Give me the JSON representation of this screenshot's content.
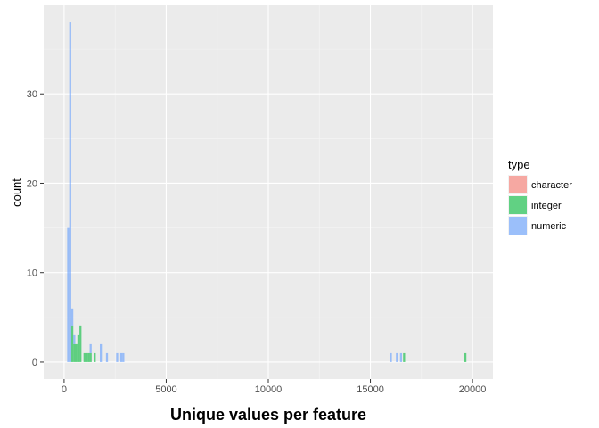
{
  "chart_data": {
    "type": "bar",
    "subtype": "histogram",
    "title": "",
    "xlabel": "Unique values per feature",
    "ylabel": "count",
    "xlim": [
      -1000,
      21000
    ],
    "ylim": [
      -1.9,
      39.9
    ],
    "x_ticks": [
      0,
      5000,
      10000,
      15000,
      20000
    ],
    "x_tick_labels": [
      "0",
      "5000",
      "10000",
      "15000",
      "20000"
    ],
    "y_ticks": [
      0,
      10,
      20,
      30
    ],
    "y_tick_labels": [
      "0",
      "10",
      "20",
      "30"
    ],
    "bin_width": 100,
    "grid": true,
    "panel_background": "#ebebeb",
    "grid_color": "#ffffff",
    "bar_opacity": 0.6,
    "legend": {
      "title": "type",
      "position": "right",
      "entries": [
        {
          "label": "character",
          "color": "#F8766D"
        },
        {
          "label": "integer",
          "color": "#00BA38"
        },
        {
          "label": "numeric",
          "color": "#619CFF"
        }
      ]
    },
    "series": [
      {
        "name": "character",
        "color": "#F8766D",
        "bins": []
      },
      {
        "name": "integer",
        "color": "#00BA38",
        "bins": [
          {
            "x": 400,
            "count": 4
          },
          {
            "x": 500,
            "count": 2
          },
          {
            "x": 600,
            "count": 2
          },
          {
            "x": 700,
            "count": 3
          },
          {
            "x": 800,
            "count": 4
          },
          {
            "x": 1000,
            "count": 1
          },
          {
            "x": 1100,
            "count": 1
          },
          {
            "x": 1200,
            "count": 1
          },
          {
            "x": 1300,
            "count": 1
          },
          {
            "x": 1500,
            "count": 1
          },
          {
            "x": 16650,
            "count": 1
          },
          {
            "x": 19650,
            "count": 1
          }
        ]
      },
      {
        "name": "numeric",
        "color": "#619CFF",
        "bins": [
          {
            "x": 200,
            "count": 15
          },
          {
            "x": 300,
            "count": 38
          },
          {
            "x": 400,
            "count": 2
          },
          {
            "x": 500,
            "count": 1
          },
          {
            "x": 1300,
            "count": 1
          },
          {
            "x": 1800,
            "count": 2
          },
          {
            "x": 2100,
            "count": 1
          },
          {
            "x": 2600,
            "count": 1
          },
          {
            "x": 2800,
            "count": 1
          },
          {
            "x": 2900,
            "count": 1
          },
          {
            "x": 16000,
            "count": 1
          },
          {
            "x": 16300,
            "count": 1
          },
          {
            "x": 16500,
            "count": 1
          }
        ]
      }
    ]
  }
}
